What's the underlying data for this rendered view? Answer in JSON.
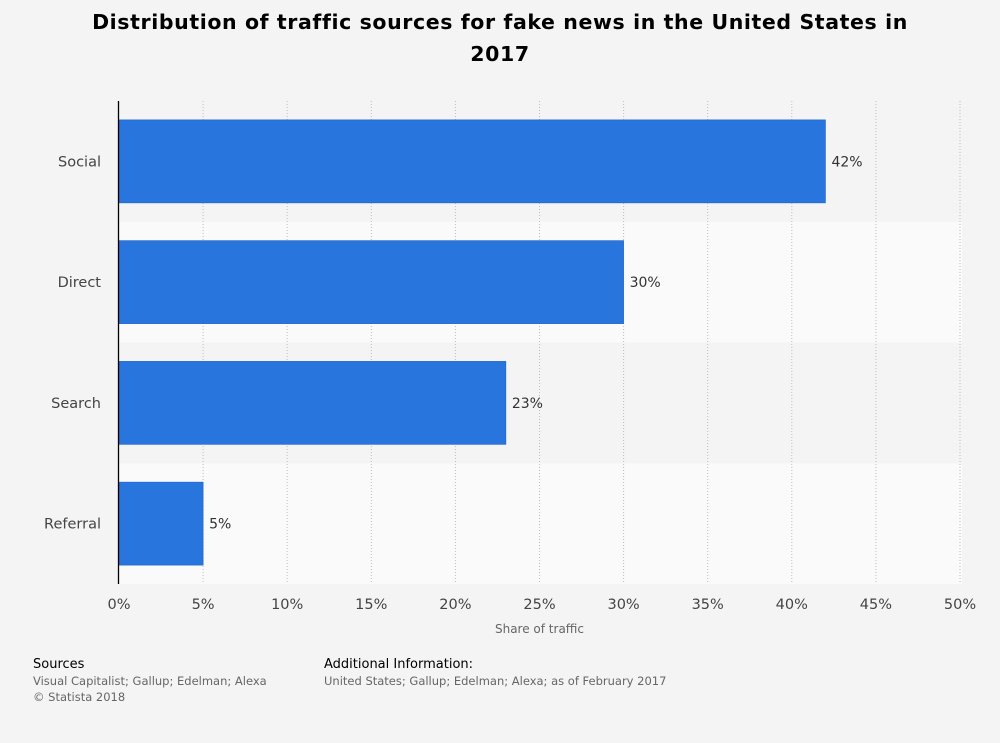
{
  "title": "Distribution of traffic sources for fake news in the United States in 2017",
  "chart_data": {
    "type": "bar",
    "orientation": "horizontal",
    "title": "Distribution of traffic sources for fake news in the United States in 2017",
    "categories": [
      "Social",
      "Direct",
      "Search",
      "Referral"
    ],
    "values": [
      42,
      30,
      23,
      5
    ],
    "value_labels": [
      "42%",
      "30%",
      "23%",
      "5%"
    ],
    "xlabel": "Share of traffic",
    "ylabel": "",
    "xlim": [
      0,
      50
    ],
    "xticks": [
      0,
      5,
      10,
      15,
      20,
      25,
      30,
      35,
      40,
      45,
      50
    ],
    "xtick_labels": [
      "0%",
      "5%",
      "10%",
      "15%",
      "20%",
      "25%",
      "30%",
      "35%",
      "40%",
      "45%",
      "50%"
    ],
    "grid": true,
    "bar_color": "#2775dd"
  },
  "footer": {
    "sources_heading": "Sources",
    "sources_line1": "Visual Capitalist; Gallup; Edelman; Alexa",
    "sources_line2": "© Statista 2018",
    "additional_heading": "Additional Information:",
    "additional_line1": "United States; Gallup; Edelman; Alexa; as of February 2017"
  }
}
